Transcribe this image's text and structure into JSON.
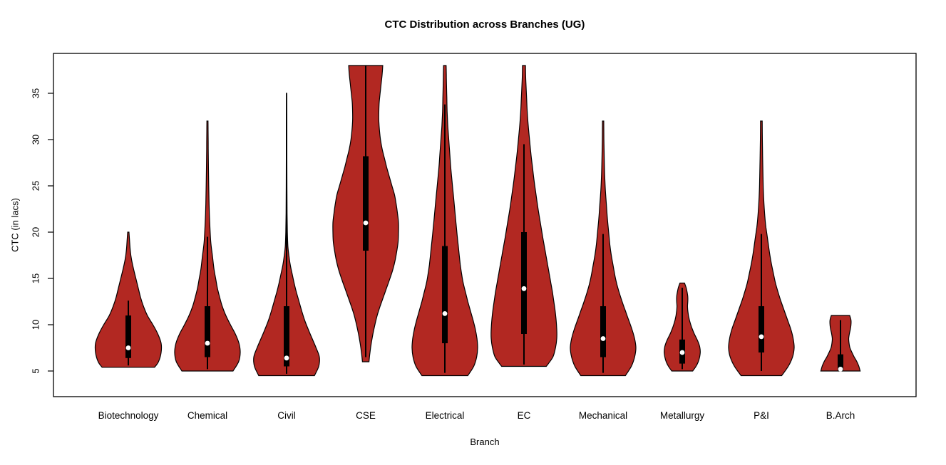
{
  "figure": {
    "title": "CTC Distribution across Branches (UG)",
    "xlabel": "Branch",
    "ylabel": "CTC (in lacs)"
  },
  "colors": {
    "violin_fill": "#B22822",
    "outline": "#000000",
    "box": "#000000",
    "median_dot": "#FFFFFF",
    "background": "#FFFFFF"
  },
  "chart_data": {
    "type": "violin",
    "title": "CTC Distribution across Branches (UG)",
    "xlabel": "Branch",
    "ylabel": "CTC (in lacs)",
    "ylim": [
      2.3,
      39.2
    ],
    "y_ticks": [
      5,
      10,
      15,
      20,
      25,
      30,
      35
    ],
    "grid": false,
    "legend": "none",
    "categories": [
      "Biotechnology",
      "Chemical",
      "Civil",
      "CSE",
      "Electrical",
      "EC",
      "Mechanical",
      "Metallurgy",
      "P&I",
      "B.Arch"
    ],
    "series": [
      {
        "name": "Biotechnology",
        "min": 5.4,
        "max": 20,
        "q1": 6.4,
        "median": 7.5,
        "q3": 11,
        "whisker_low": 5.6,
        "whisker_high": 12.6,
        "profile": [
          [
            5.4,
            0.8
          ],
          [
            6,
            0.92
          ],
          [
            7,
            1.0
          ],
          [
            8,
            1.0
          ],
          [
            9,
            0.9
          ],
          [
            10,
            0.75
          ],
          [
            11,
            0.58
          ],
          [
            12,
            0.46
          ],
          [
            13,
            0.37
          ],
          [
            14,
            0.3
          ],
          [
            15,
            0.23
          ],
          [
            16,
            0.16
          ],
          [
            17,
            0.1
          ],
          [
            18,
            0.06
          ],
          [
            19,
            0.04
          ],
          [
            20,
            0.02
          ]
        ]
      },
      {
        "name": "Chemical",
        "min": 5,
        "max": 32,
        "q1": 6.5,
        "median": 8,
        "q3": 12,
        "whisker_low": 5.2,
        "whisker_high": 19.5,
        "profile": [
          [
            5,
            0.78
          ],
          [
            6,
            0.95
          ],
          [
            7,
            1.0
          ],
          [
            8,
            0.96
          ],
          [
            9,
            0.85
          ],
          [
            10,
            0.7
          ],
          [
            11,
            0.56
          ],
          [
            12,
            0.45
          ],
          [
            13,
            0.37
          ],
          [
            14,
            0.3
          ],
          [
            15,
            0.25
          ],
          [
            16,
            0.2
          ],
          [
            17.5,
            0.15
          ],
          [
            19,
            0.1
          ],
          [
            21,
            0.07
          ],
          [
            23,
            0.05
          ],
          [
            25,
            0.04
          ],
          [
            27,
            0.03
          ],
          [
            29,
            0.025
          ],
          [
            31,
            0.02
          ],
          [
            32,
            0.018
          ]
        ]
      },
      {
        "name": "Civil",
        "min": 4.5,
        "max": 35,
        "q1": 5.5,
        "median": 6.4,
        "q3": 12,
        "whisker_low": 4.7,
        "whisker_high": 29,
        "profile": [
          [
            4.5,
            0.85
          ],
          [
            5.5,
            0.98
          ],
          [
            6.5,
            1.0
          ],
          [
            7.5,
            0.9
          ],
          [
            8.5,
            0.78
          ],
          [
            9.5,
            0.66
          ],
          [
            10.5,
            0.55
          ],
          [
            11.5,
            0.46
          ],
          [
            12.5,
            0.38
          ],
          [
            13.5,
            0.3
          ],
          [
            14.5,
            0.23
          ],
          [
            15.5,
            0.17
          ],
          [
            16.5,
            0.11
          ],
          [
            17.5,
            0.07
          ],
          [
            18.5,
            0.04
          ],
          [
            20,
            0.025
          ],
          [
            22,
            0.015
          ],
          [
            25,
            0.011
          ],
          [
            28,
            0.009
          ],
          [
            31,
            0.008
          ],
          [
            35,
            0.007
          ]
        ]
      },
      {
        "name": "CSE",
        "min": 6,
        "max": 38,
        "q1": 18,
        "median": 21,
        "q3": 28.2,
        "whisker_low": 6.5,
        "whisker_high": 38,
        "profile": [
          [
            6,
            0.1
          ],
          [
            7,
            0.13
          ],
          [
            8,
            0.17
          ],
          [
            9,
            0.22
          ],
          [
            10,
            0.28
          ],
          [
            11,
            0.35
          ],
          [
            12,
            0.44
          ],
          [
            13,
            0.54
          ],
          [
            14,
            0.64
          ],
          [
            15,
            0.74
          ],
          [
            16,
            0.83
          ],
          [
            17,
            0.9
          ],
          [
            18,
            0.95
          ],
          [
            19,
            0.99
          ],
          [
            20,
            1.0
          ],
          [
            21,
            1.0
          ],
          [
            22,
            0.97
          ],
          [
            23,
            0.93
          ],
          [
            24,
            0.88
          ],
          [
            25,
            0.8
          ],
          [
            26,
            0.72
          ],
          [
            27,
            0.64
          ],
          [
            28,
            0.57
          ],
          [
            29,
            0.5
          ],
          [
            30,
            0.45
          ],
          [
            31,
            0.42
          ],
          [
            32,
            0.4
          ],
          [
            33,
            0.4
          ],
          [
            34,
            0.41
          ],
          [
            35,
            0.44
          ],
          [
            36,
            0.47
          ],
          [
            37,
            0.5
          ],
          [
            38,
            0.52
          ]
        ]
      },
      {
        "name": "Electrical",
        "min": 4.5,
        "max": 38,
        "q1": 8,
        "median": 11.2,
        "q3": 18.5,
        "whisker_low": 4.8,
        "whisker_high": 33.8,
        "profile": [
          [
            4.5,
            0.7
          ],
          [
            5.5,
            0.88
          ],
          [
            6.5,
            0.97
          ],
          [
            7.5,
            1.0
          ],
          [
            8.5,
            0.98
          ],
          [
            9.5,
            0.93
          ],
          [
            10.5,
            0.86
          ],
          [
            11.5,
            0.78
          ],
          [
            12.5,
            0.7
          ],
          [
            13.5,
            0.63
          ],
          [
            14.5,
            0.56
          ],
          [
            15.5,
            0.51
          ],
          [
            16.5,
            0.47
          ],
          [
            17.5,
            0.44
          ],
          [
            18.5,
            0.41
          ],
          [
            19.5,
            0.38
          ],
          [
            21,
            0.34
          ],
          [
            22.5,
            0.3
          ],
          [
            24,
            0.26
          ],
          [
            25.5,
            0.22
          ],
          [
            27,
            0.18
          ],
          [
            28.5,
            0.15
          ],
          [
            30,
            0.12
          ],
          [
            31.5,
            0.09
          ],
          [
            33,
            0.07
          ],
          [
            34.5,
            0.06
          ],
          [
            36,
            0.05
          ],
          [
            37,
            0.045
          ],
          [
            38,
            0.04
          ]
        ]
      },
      {
        "name": "EC",
        "min": 5.5,
        "max": 38,
        "q1": 9,
        "median": 13.9,
        "q3": 20,
        "whisker_low": 5.7,
        "whisker_high": 29.5,
        "profile": [
          [
            5.5,
            0.68
          ],
          [
            6.5,
            0.88
          ],
          [
            7.5,
            0.96
          ],
          [
            8.5,
            1.0
          ],
          [
            9.5,
            1.0
          ],
          [
            10.5,
            0.98
          ],
          [
            11.5,
            0.95
          ],
          [
            12.5,
            0.91
          ],
          [
            13.5,
            0.87
          ],
          [
            14.5,
            0.82
          ],
          [
            15.5,
            0.77
          ],
          [
            16.5,
            0.72
          ],
          [
            17.5,
            0.67
          ],
          [
            18.5,
            0.62
          ],
          [
            19.5,
            0.57
          ],
          [
            21,
            0.5
          ],
          [
            22.5,
            0.43
          ],
          [
            24,
            0.37
          ],
          [
            25.5,
            0.31
          ],
          [
            27,
            0.26
          ],
          [
            28.5,
            0.21
          ],
          [
            30,
            0.17
          ],
          [
            31.5,
            0.13
          ],
          [
            33,
            0.1
          ],
          [
            34.5,
            0.08
          ],
          [
            36,
            0.06
          ],
          [
            37,
            0.05
          ],
          [
            38,
            0.045
          ]
        ]
      },
      {
        "name": "Mechanical",
        "min": 4.5,
        "max": 32,
        "q1": 6.5,
        "median": 8.5,
        "q3": 12,
        "whisker_low": 4.8,
        "whisker_high": 19.8,
        "profile": [
          [
            4.5,
            0.68
          ],
          [
            5.5,
            0.86
          ],
          [
            6.5,
            0.96
          ],
          [
            7.5,
            1.0
          ],
          [
            8.5,
            0.96
          ],
          [
            9.5,
            0.88
          ],
          [
            10.5,
            0.78
          ],
          [
            11.5,
            0.68
          ],
          [
            12.5,
            0.58
          ],
          [
            13.5,
            0.49
          ],
          [
            14.5,
            0.41
          ],
          [
            15.5,
            0.35
          ],
          [
            16.5,
            0.3
          ],
          [
            17.5,
            0.25
          ],
          [
            18.5,
            0.21
          ],
          [
            20,
            0.17
          ],
          [
            21.5,
            0.13
          ],
          [
            23,
            0.1
          ],
          [
            24.5,
            0.07
          ],
          [
            26,
            0.05
          ],
          [
            28,
            0.035
          ],
          [
            30,
            0.025
          ],
          [
            32,
            0.02
          ]
        ]
      },
      {
        "name": "Metallurgy",
        "min": 5,
        "max": 14.5,
        "q1": 5.8,
        "median": 7,
        "q3": 8.4,
        "whisker_low": 5.2,
        "whisker_high": 14,
        "profile": [
          [
            5,
            0.32
          ],
          [
            5.5,
            0.42
          ],
          [
            6,
            0.49
          ],
          [
            6.5,
            0.53
          ],
          [
            7,
            0.55
          ],
          [
            7.5,
            0.54
          ],
          [
            8,
            0.5
          ],
          [
            8.5,
            0.44
          ],
          [
            9,
            0.37
          ],
          [
            9.5,
            0.31
          ],
          [
            10,
            0.26
          ],
          [
            10.5,
            0.22
          ],
          [
            11,
            0.19
          ],
          [
            11.5,
            0.17
          ],
          [
            12,
            0.16
          ],
          [
            12.5,
            0.17
          ],
          [
            13,
            0.17
          ],
          [
            13.5,
            0.15
          ],
          [
            14,
            0.12
          ],
          [
            14.5,
            0.07
          ]
        ]
      },
      {
        "name": "P&I",
        "min": 4.5,
        "max": 32,
        "q1": 7,
        "median": 8.7,
        "q3": 12,
        "whisker_low": 5,
        "whisker_high": 19.8,
        "profile": [
          [
            4.5,
            0.62
          ],
          [
            5.5,
            0.82
          ],
          [
            6.5,
            0.95
          ],
          [
            7.5,
            1.0
          ],
          [
            8.5,
            0.97
          ],
          [
            9.5,
            0.9
          ],
          [
            10.5,
            0.8
          ],
          [
            11.5,
            0.7
          ],
          [
            12.5,
            0.6
          ],
          [
            13.5,
            0.51
          ],
          [
            14.5,
            0.43
          ],
          [
            15.5,
            0.37
          ],
          [
            16.5,
            0.31
          ],
          [
            17.5,
            0.26
          ],
          [
            18.5,
            0.22
          ],
          [
            19.5,
            0.18
          ],
          [
            20.5,
            0.14
          ],
          [
            21.5,
            0.11
          ],
          [
            23,
            0.08
          ],
          [
            24.5,
            0.06
          ],
          [
            26,
            0.05
          ],
          [
            28,
            0.04
          ],
          [
            30,
            0.03
          ],
          [
            32,
            0.025
          ]
        ]
      },
      {
        "name": "B.Arch",
        "min": 5,
        "max": 11,
        "q1": 5,
        "median": 5.2,
        "q3": 6.8,
        "whisker_low": 5,
        "whisker_high": 10.5,
        "profile": [
          [
            5,
            0.6
          ],
          [
            5.5,
            0.56
          ],
          [
            6,
            0.5
          ],
          [
            6.5,
            0.42
          ],
          [
            7,
            0.35
          ],
          [
            7.5,
            0.29
          ],
          [
            8,
            0.26
          ],
          [
            8.5,
            0.25
          ],
          [
            9,
            0.27
          ],
          [
            9.5,
            0.3
          ],
          [
            10,
            0.32
          ],
          [
            10.5,
            0.32
          ],
          [
            11,
            0.28
          ]
        ]
      }
    ]
  }
}
